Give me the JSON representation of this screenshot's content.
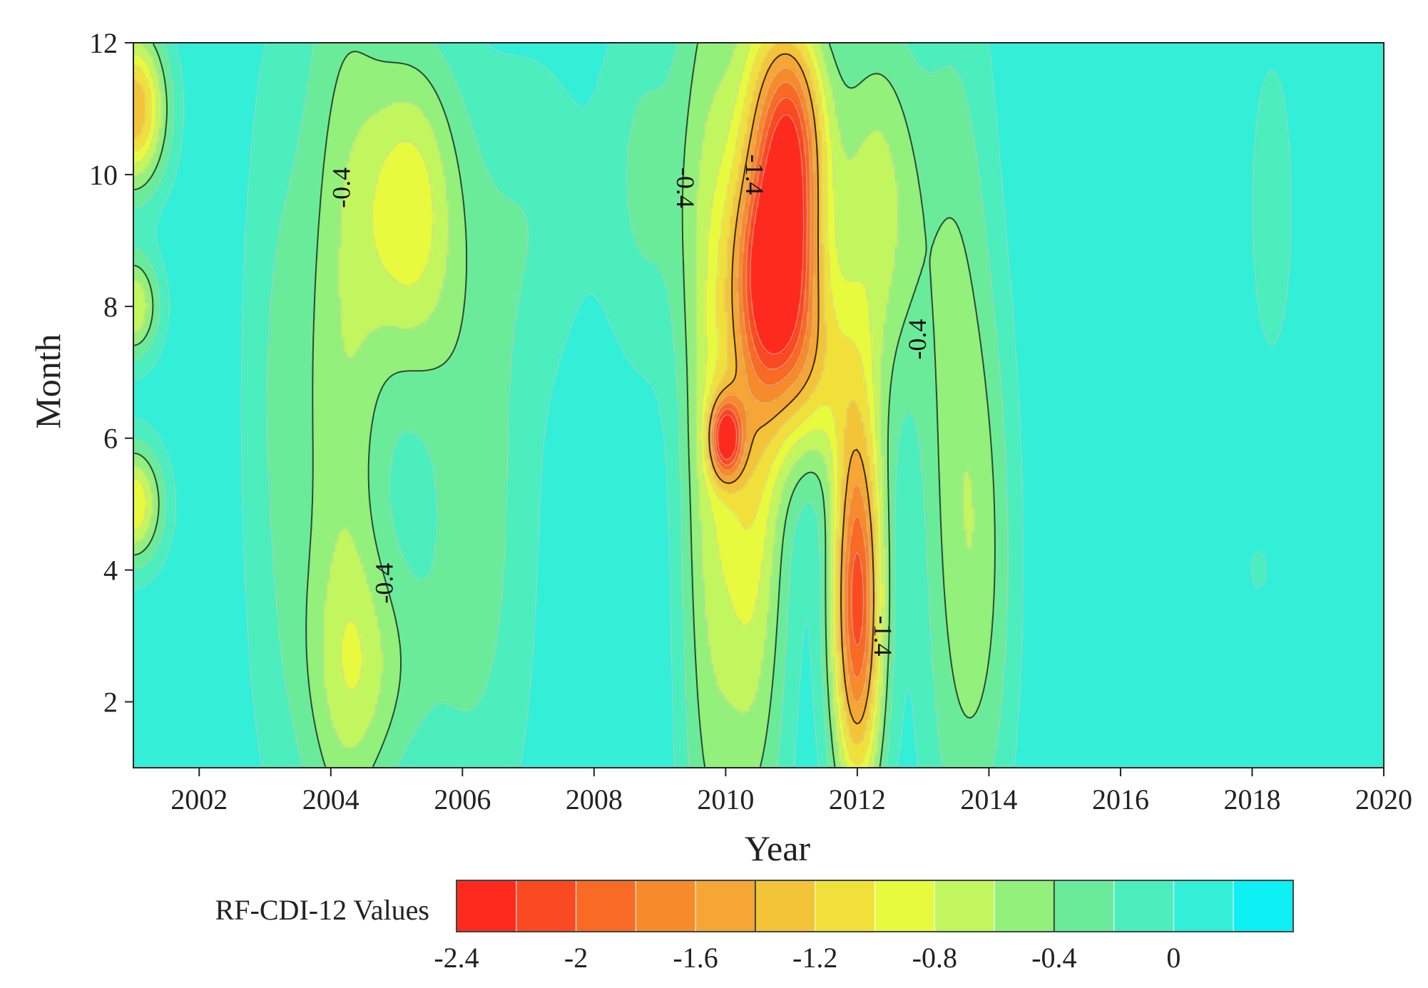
{
  "chart_data": {
    "type": "heatmap",
    "subtype": "filled-contour",
    "xlabel": "Year",
    "ylabel": "Month",
    "xlim": [
      2001,
      2020
    ],
    "ylim": [
      1,
      12
    ],
    "x_ticks": [
      2002,
      2004,
      2006,
      2008,
      2010,
      2012,
      2014,
      2016,
      2018,
      2020
    ],
    "y_ticks": [
      2,
      4,
      6,
      8,
      10,
      12
    ],
    "x_tick_labels": [
      "2002",
      "2004",
      "2006",
      "2008",
      "2010",
      "2012",
      "2014",
      "2016",
      "2018",
      "2020"
    ],
    "y_tick_labels": [
      "2",
      "4",
      "6",
      "8",
      "10",
      "12"
    ],
    "colorbar": {
      "title": "RF-CDI-12 Values",
      "levels": [
        -2.4,
        -2.2,
        -2.0,
        -1.8,
        -1.6,
        -1.4,
        -1.2,
        -1.0,
        -0.8,
        -0.6,
        -0.4,
        -0.2,
        0.0,
        0.2
      ],
      "colors": [
        "#ff2a1e",
        "#fb4a21",
        "#f96a24",
        "#f78a2a",
        "#f5a634",
        "#f3c437",
        "#f2e03a",
        "#e8fa3e",
        "#c2f65e",
        "#93f07a",
        "#6aeb9a",
        "#4ceebd",
        "#34efd7",
        "#0df0f4"
      ],
      "tick_values": [
        -2.4,
        -2.0,
        -1.6,
        -1.2,
        -0.8,
        -0.4,
        0.0
      ],
      "tick_labels": [
        "-2.4",
        "-2",
        "-1.6",
        "-1.2",
        "-0.8",
        "-0.4",
        "0"
      ],
      "placement": "bottom"
    },
    "contour_labels": [
      {
        "text": "-0.4",
        "x": 2004.2,
        "y": 9.8,
        "rotate": -90
      },
      {
        "text": "-0.4",
        "x": 2004.85,
        "y": 3.8,
        "rotate": -90
      },
      {
        "text": "-0.4",
        "x": 2009.35,
        "y": 9.8,
        "rotate": 90
      },
      {
        "text": "-1.4",
        "x": 2010.4,
        "y": 10.0,
        "rotate": 90
      },
      {
        "text": "-0.4",
        "x": 2012.95,
        "y": 7.5,
        "rotate": -90
      },
      {
        "text": "-1.4",
        "x": 2012.35,
        "y": 3.0,
        "rotate": 90
      }
    ],
    "field_anomalies": [
      {
        "x": 2001.0,
        "y": 11.0,
        "value": -1.4,
        "wx": 0.5,
        "wy": 1.2
      },
      {
        "x": 2001.0,
        "y": 8.0,
        "value": -0.8,
        "wx": 0.4,
        "wy": 0.8
      },
      {
        "x": 2001.0,
        "y": 5.0,
        "value": -1.0,
        "wx": 0.45,
        "wy": 0.9
      },
      {
        "x": 2003.2,
        "y": 6.5,
        "value": -0.2,
        "wx": 0.6,
        "wy": 6.0
      },
      {
        "x": 2004.2,
        "y": 6.5,
        "value": -0.5,
        "wx": 0.65,
        "wy": 9.0
      },
      {
        "x": 2005.2,
        "y": 9.5,
        "value": -0.85,
        "wx": 0.75,
        "wy": 2.5
      },
      {
        "x": 2004.6,
        "y": 2.5,
        "value": -0.35,
        "wx": 0.9,
        "wy": 1.8
      },
      {
        "x": 2006.2,
        "y": 5.0,
        "value": -0.3,
        "wx": 0.9,
        "wy": 5.5
      },
      {
        "x": 2007.2,
        "y": 9.5,
        "value": -0.1,
        "wx": 0.8,
        "wy": 2.5
      },
      {
        "x": 2008.8,
        "y": 10.0,
        "value": -0.25,
        "wx": 0.7,
        "wy": 3.0
      },
      {
        "x": 2009.7,
        "y": 6.5,
        "value": -0.5,
        "wx": 0.45,
        "wy": 9.0
      },
      {
        "x": 2010.4,
        "y": 6.5,
        "value": -1.0,
        "wx": 0.55,
        "wy": 6.5
      },
      {
        "x": 2010.0,
        "y": 6.0,
        "value": -1.5,
        "wx": 0.25,
        "wy": 0.6
      },
      {
        "x": 2011.0,
        "y": 10.5,
        "value": -1.9,
        "wx": 0.55,
        "wy": 2.0
      },
      {
        "x": 2010.8,
        "y": 8.5,
        "value": -1.4,
        "wx": 0.6,
        "wy": 1.5
      },
      {
        "x": 2011.2,
        "y": 7.0,
        "value": -0.9,
        "wx": 0.7,
        "wy": 1.5
      },
      {
        "x": 2012.0,
        "y": 3.5,
        "value": -2.1,
        "wx": 0.4,
        "wy": 3.0
      },
      {
        "x": 2012.3,
        "y": 9.5,
        "value": -0.7,
        "wx": 0.7,
        "wy": 3.0
      },
      {
        "x": 2013.5,
        "y": 6.0,
        "value": -0.45,
        "wx": 0.6,
        "wy": 7.0
      },
      {
        "x": 2014.0,
        "y": 4.0,
        "value": -0.2,
        "wx": 0.5,
        "wy": 4.0
      },
      {
        "x": 2018.3,
        "y": 9.5,
        "value": -0.15,
        "wx": 0.35,
        "wy": 2.5
      },
      {
        "x": 2018.1,
        "y": 4.0,
        "value": -0.05,
        "wx": 0.2,
        "wy": 0.5
      }
    ]
  }
}
